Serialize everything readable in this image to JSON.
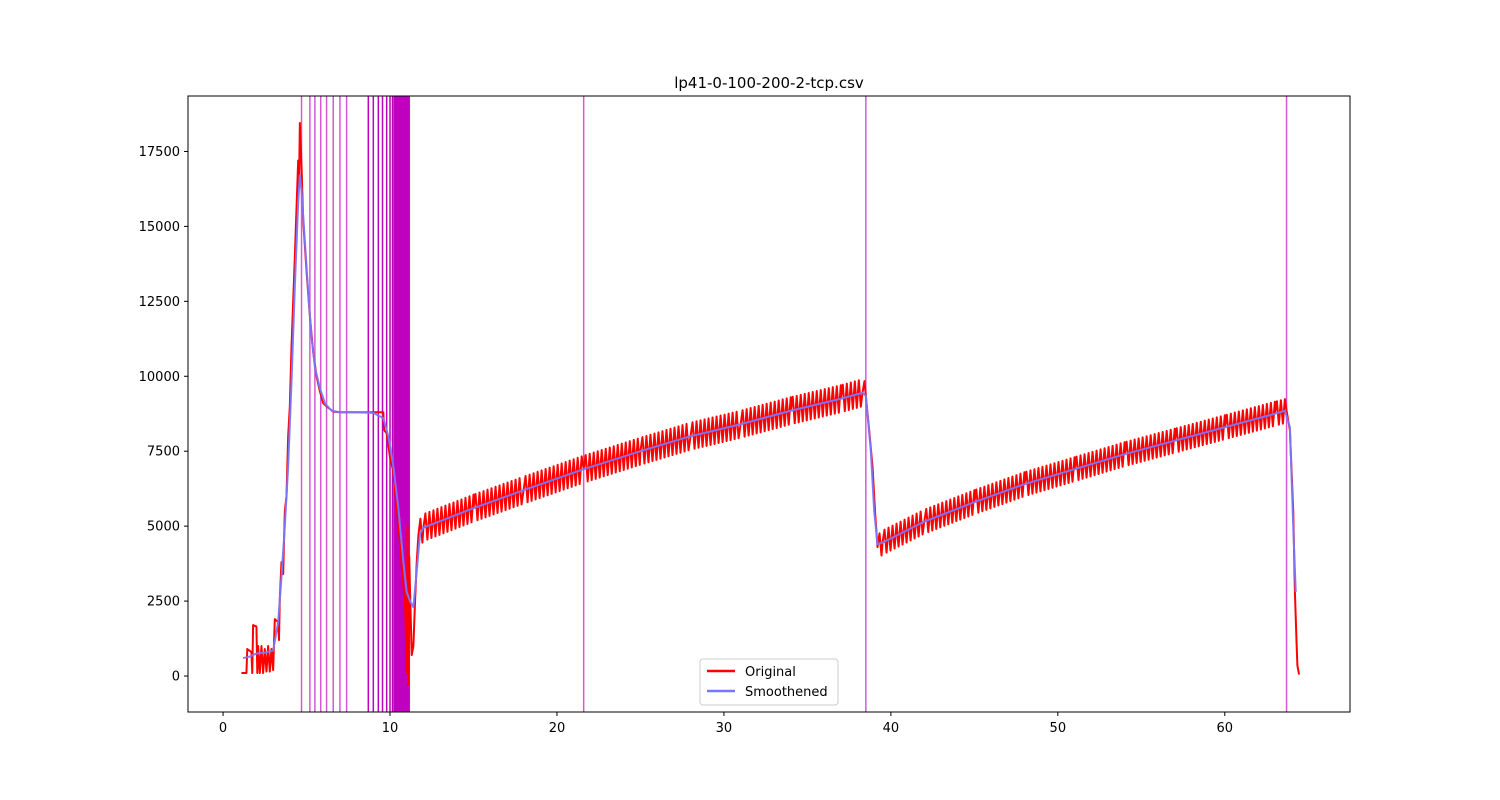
{
  "chart_data": {
    "type": "line",
    "title": "lp41-0-100-200-2-tcp.csv",
    "xlabel": "",
    "ylabel": "",
    "xlim": [
      -2.1,
      67.5
    ],
    "ylim": [
      -1200,
      19350
    ],
    "x_ticks": [
      0,
      10,
      20,
      30,
      40,
      50,
      60
    ],
    "y_ticks": [
      0,
      2500,
      5000,
      7500,
      10000,
      12500,
      15000,
      17500
    ],
    "legend": {
      "placement": "lower-center",
      "entries": [
        "Original",
        "Smoothened"
      ]
    },
    "grid": false,
    "colors": {
      "original": "#ff0000",
      "smoothened": "#7777ff",
      "markers": "#bf00bf"
    },
    "series": [
      {
        "name": "Original",
        "oscillation": [
          {
            "x_start": 11.7,
            "x_end": 38.5,
            "amplitude": 450
          },
          {
            "x_start": 39.2,
            "x_end": 63.7,
            "amplitude": 400
          }
        ],
        "points": [
          [
            1.1,
            100
          ],
          [
            1.4,
            100
          ],
          [
            1.45,
            900
          ],
          [
            1.7,
            800
          ],
          [
            1.75,
            100
          ],
          [
            1.8,
            1700
          ],
          [
            2.0,
            1650
          ],
          [
            2.05,
            100
          ],
          [
            2.1,
            1000
          ],
          [
            2.2,
            100
          ],
          [
            2.3,
            1000
          ],
          [
            2.4,
            100
          ],
          [
            2.5,
            900
          ],
          [
            2.6,
            150
          ],
          [
            2.7,
            1000
          ],
          [
            2.8,
            150
          ],
          [
            2.9,
            900
          ],
          [
            3.0,
            200
          ],
          [
            3.1,
            1900
          ],
          [
            3.3,
            1800
          ],
          [
            3.35,
            1200
          ],
          [
            3.4,
            2600
          ],
          [
            3.5,
            3800
          ],
          [
            3.6,
            3400
          ],
          [
            3.7,
            5500
          ],
          [
            3.8,
            6000
          ],
          [
            3.9,
            8000
          ],
          [
            4.0,
            9000
          ],
          [
            4.1,
            11000
          ],
          [
            4.2,
            12500
          ],
          [
            4.3,
            14000
          ],
          [
            4.4,
            15600
          ],
          [
            4.5,
            17200
          ],
          [
            4.55,
            16300
          ],
          [
            4.6,
            18450
          ],
          [
            4.7,
            17000
          ],
          [
            4.8,
            15200
          ],
          [
            5.0,
            13500
          ],
          [
            5.2,
            12000
          ],
          [
            5.4,
            10800
          ],
          [
            5.6,
            10000
          ],
          [
            5.8,
            9500
          ],
          [
            6.0,
            9100
          ],
          [
            6.3,
            8950
          ],
          [
            6.6,
            8820
          ],
          [
            7.0,
            8800
          ],
          [
            8.0,
            8800
          ],
          [
            9.0,
            8800
          ],
          [
            9.6,
            8800
          ],
          [
            9.65,
            8200
          ],
          [
            9.8,
            8100
          ],
          [
            10.0,
            7300
          ],
          [
            10.2,
            6800
          ],
          [
            10.4,
            5600
          ],
          [
            10.6,
            4400
          ],
          [
            10.8,
            3000
          ],
          [
            10.9,
            2500
          ],
          [
            11.0,
            100
          ],
          [
            11.05,
            5000
          ],
          [
            11.1,
            -300
          ],
          [
            11.15,
            4000
          ],
          [
            11.2,
            2800
          ],
          [
            11.3,
            700
          ],
          [
            11.4,
            1000
          ],
          [
            11.5,
            2500
          ],
          [
            11.6,
            3800
          ],
          [
            11.7,
            4700
          ],
          [
            12.0,
            4950
          ],
          [
            15.0,
            5600
          ],
          [
            18.0,
            6200
          ],
          [
            21.6,
            6900
          ],
          [
            25.0,
            7500
          ],
          [
            28.0,
            8000
          ],
          [
            31.0,
            8400
          ],
          [
            34.0,
            8850
          ],
          [
            37.0,
            9250
          ],
          [
            38.3,
            9450
          ],
          [
            38.5,
            9350
          ],
          [
            38.7,
            8200
          ],
          [
            38.9,
            7000
          ],
          [
            39.05,
            5500
          ],
          [
            39.2,
            4300
          ],
          [
            39.5,
            4450
          ],
          [
            42.0,
            5150
          ],
          [
            45.0,
            5800
          ],
          [
            48.0,
            6400
          ],
          [
            51.0,
            6900
          ],
          [
            54.0,
            7400
          ],
          [
            57.0,
            7850
          ],
          [
            60.0,
            8300
          ],
          [
            63.0,
            8750
          ],
          [
            63.7,
            8850
          ],
          [
            63.9,
            8200
          ],
          [
            64.1,
            5500
          ],
          [
            64.2,
            2800
          ],
          [
            64.3,
            1100
          ],
          [
            64.35,
            350
          ],
          [
            64.45,
            50
          ]
        ]
      },
      {
        "name": "Smoothened",
        "points": [
          [
            1.2,
            600
          ],
          [
            1.6,
            650
          ],
          [
            2.0,
            750
          ],
          [
            2.5,
            780
          ],
          [
            3.0,
            850
          ],
          [
            3.3,
            1800
          ],
          [
            3.5,
            3300
          ],
          [
            3.7,
            5000
          ],
          [
            3.9,
            7000
          ],
          [
            4.1,
            9800
          ],
          [
            4.3,
            13000
          ],
          [
            4.5,
            15800
          ],
          [
            4.6,
            16700
          ],
          [
            4.7,
            16200
          ],
          [
            4.9,
            14500
          ],
          [
            5.1,
            12800
          ],
          [
            5.3,
            11300
          ],
          [
            5.5,
            10300
          ],
          [
            5.8,
            9600
          ],
          [
            6.1,
            9100
          ],
          [
            6.5,
            8850
          ],
          [
            7.0,
            8800
          ],
          [
            8.0,
            8800
          ],
          [
            9.0,
            8780
          ],
          [
            9.6,
            8600
          ],
          [
            9.9,
            8000
          ],
          [
            10.2,
            7000
          ],
          [
            10.5,
            5600
          ],
          [
            10.8,
            3800
          ],
          [
            11.0,
            2800
          ],
          [
            11.2,
            2500
          ],
          [
            11.4,
            2300
          ],
          [
            11.6,
            3500
          ],
          [
            11.8,
            4750
          ],
          [
            12.0,
            4950
          ],
          [
            15.0,
            5600
          ],
          [
            18.0,
            6200
          ],
          [
            21.6,
            6900
          ],
          [
            25.0,
            7500
          ],
          [
            28.0,
            8000
          ],
          [
            31.0,
            8400
          ],
          [
            34.0,
            8850
          ],
          [
            37.0,
            9250
          ],
          [
            38.3,
            9450
          ],
          [
            38.5,
            9350
          ],
          [
            38.8,
            7500
          ],
          [
            39.0,
            5500
          ],
          [
            39.2,
            4400
          ],
          [
            39.5,
            4450
          ],
          [
            42.0,
            5150
          ],
          [
            45.0,
            5800
          ],
          [
            48.0,
            6400
          ],
          [
            51.0,
            6900
          ],
          [
            54.0,
            7400
          ],
          [
            57.0,
            7850
          ],
          [
            60.0,
            8300
          ],
          [
            63.0,
            8750
          ],
          [
            63.6,
            8850
          ],
          [
            63.9,
            8300
          ],
          [
            64.1,
            5000
          ],
          [
            64.25,
            2800
          ]
        ]
      }
    ],
    "vertical_markers": [
      4.7,
      5.2,
      5.5,
      5.85,
      6.2,
      6.6,
      7.0,
      7.4,
      8.7,
      9.0,
      9.3,
      9.55,
      9.8,
      10.0,
      10.15,
      10.3,
      10.4,
      10.5,
      10.6,
      10.7,
      10.8,
      10.9,
      11.0,
      11.1,
      21.6,
      38.5,
      63.7
    ],
    "vertical_marker_dense_band": [
      10.2,
      11.2
    ]
  }
}
